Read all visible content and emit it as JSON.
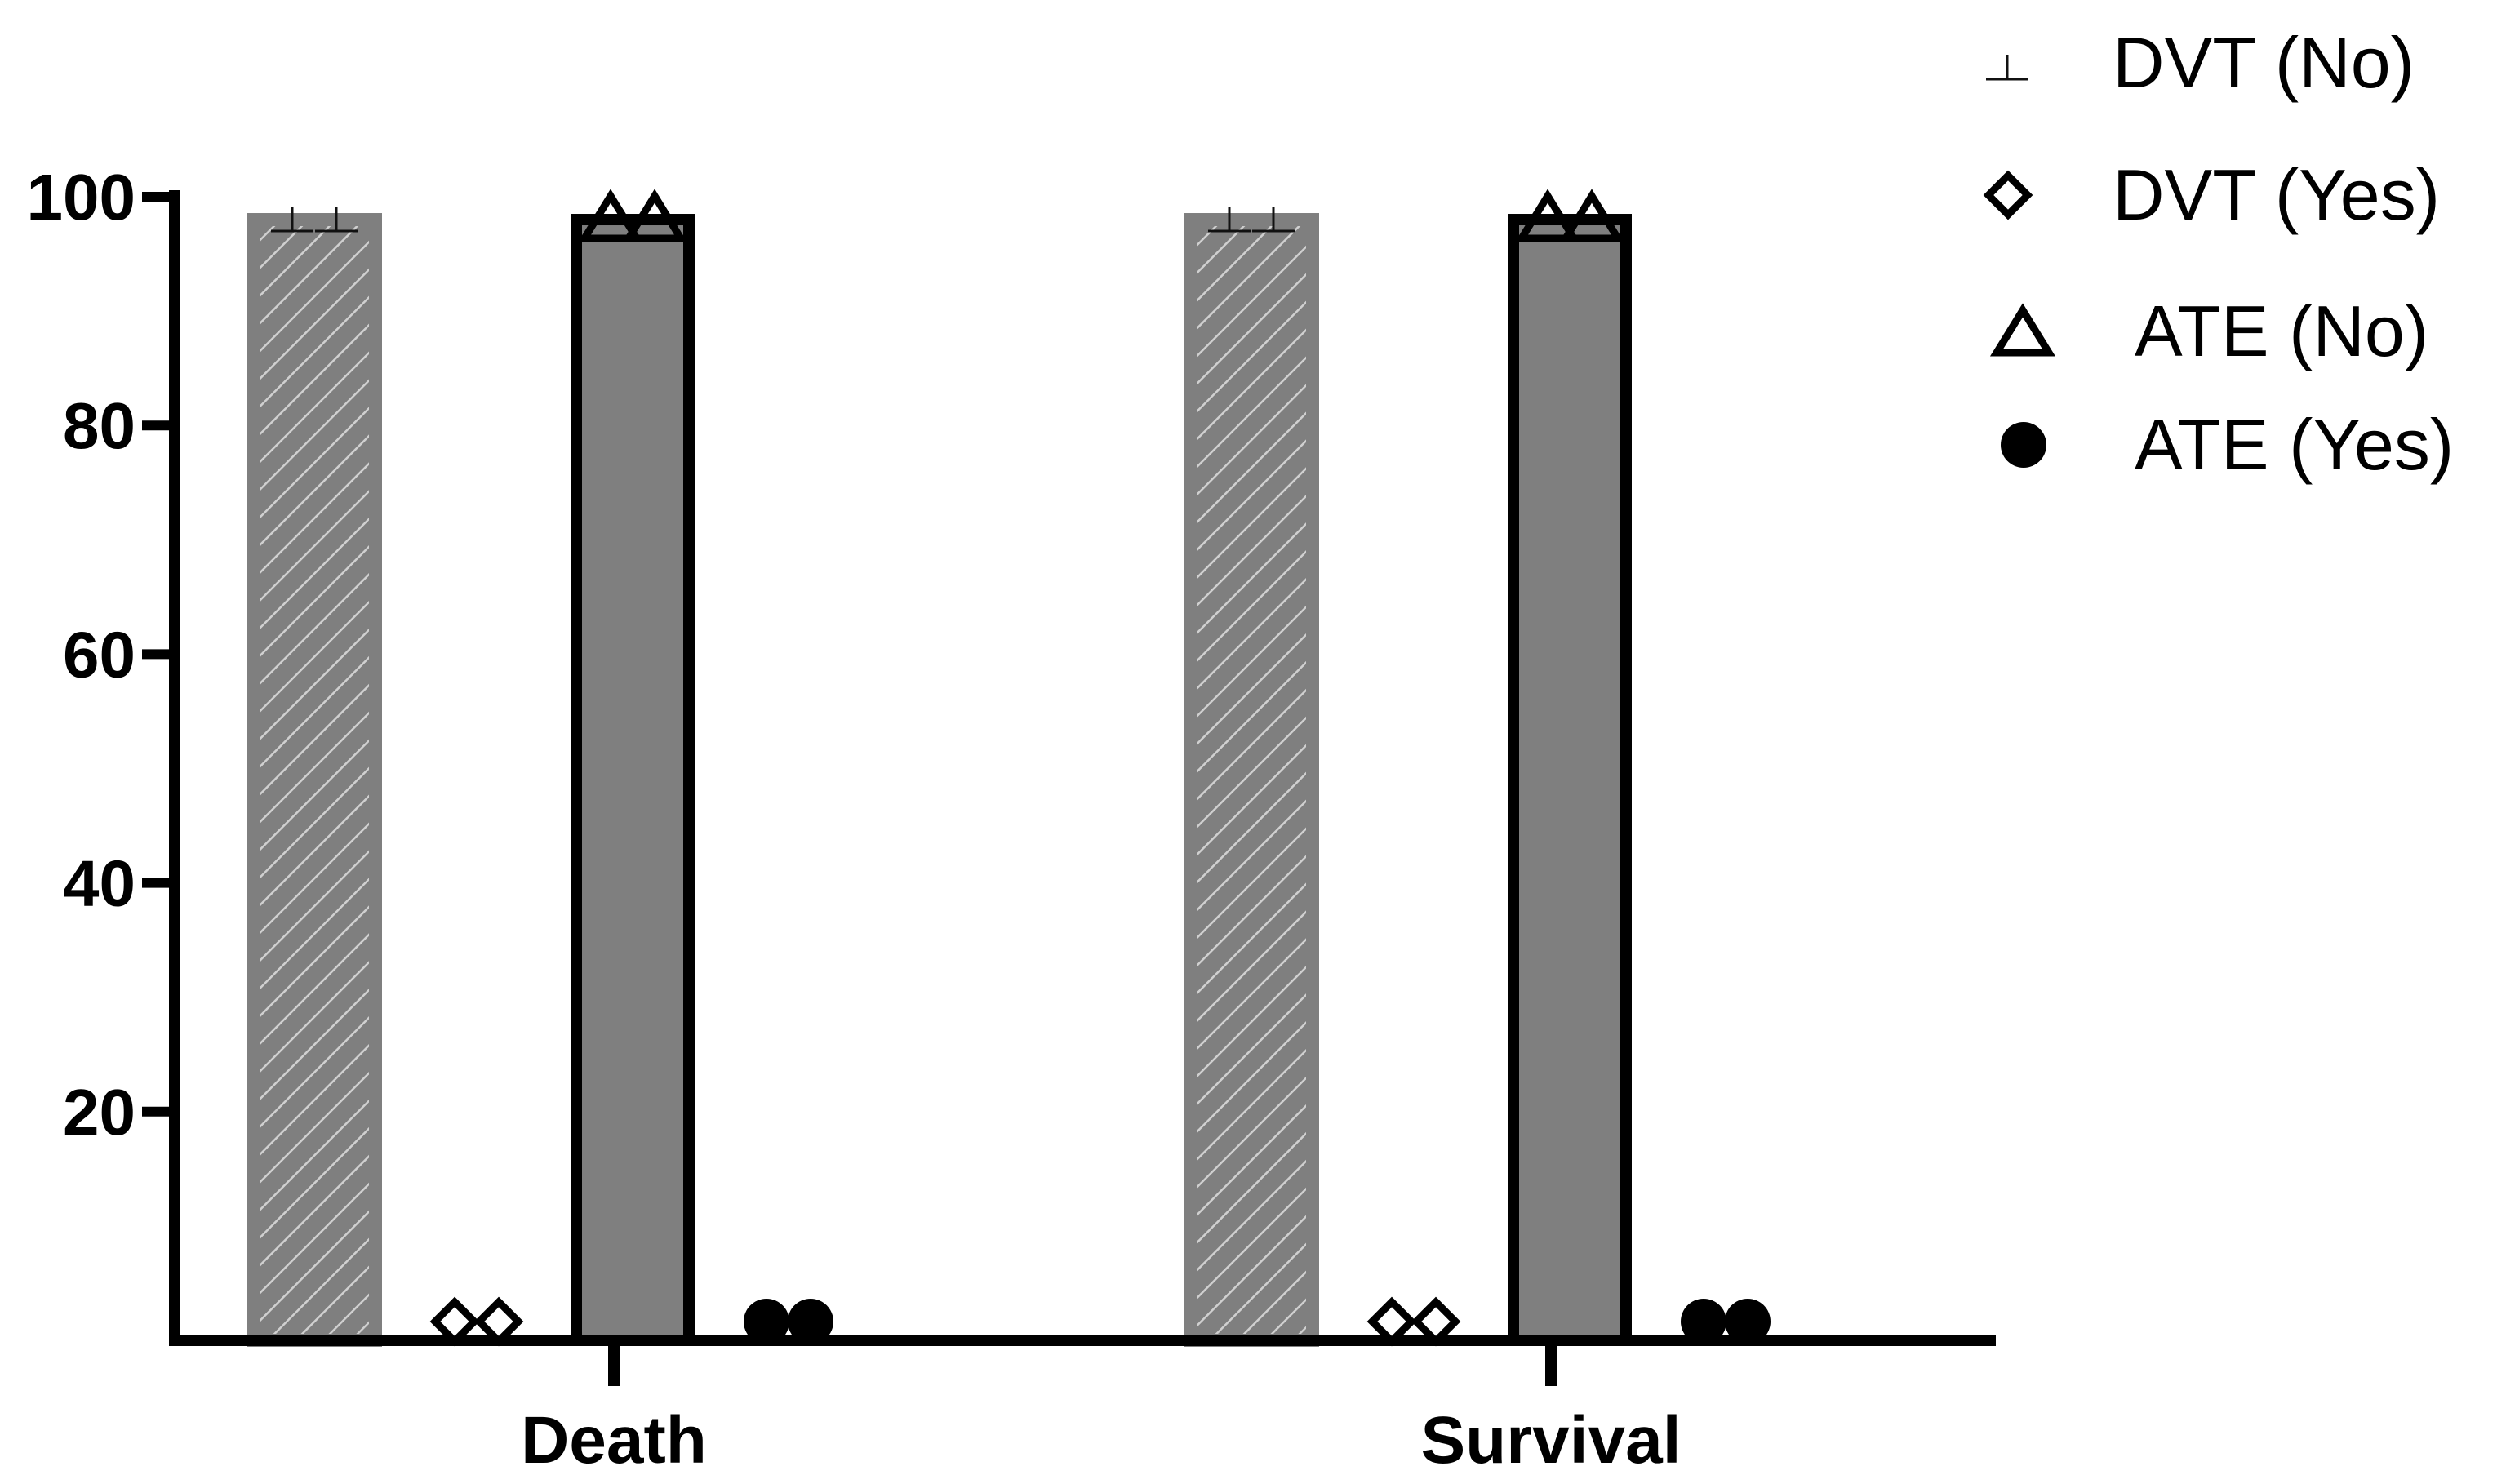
{
  "chart_data": {
    "type": "bar",
    "categories": [
      "Death",
      "Survival"
    ],
    "series": [
      {
        "name": "DVT (No)",
        "values": [
          98,
          98
        ],
        "points": [
          [
            98,
            98
          ],
          [
            98,
            98
          ]
        ],
        "marker": "perp-icon",
        "bar_style": "hatched"
      },
      {
        "name": "DVT (Yes)",
        "values": [
          2,
          2
        ],
        "points": [
          [
            2,
            2
          ],
          [
            2,
            2
          ]
        ],
        "marker": "diamond-icon",
        "bar_style": "none"
      },
      {
        "name": "ATE (No)",
        "values": [
          98,
          98
        ],
        "points": [
          [
            98,
            98
          ],
          [
            98,
            98
          ]
        ],
        "marker": "triangle-icon",
        "bar_style": "solid"
      },
      {
        "name": "ATE (Yes)",
        "values": [
          2,
          2
        ],
        "points": [
          [
            2,
            2
          ],
          [
            2,
            2
          ]
        ],
        "marker": "circle-icon",
        "bar_style": "none"
      }
    ],
    "yticks": [
      "20",
      "40",
      "60",
      "80",
      "100"
    ],
    "ylim": [
      0,
      100
    ],
    "grid": false,
    "legend": "top-right",
    "colors": {
      "bar_fill": "#7f7f7f",
      "hatch_line": "#d0d0d0",
      "axis": "#000000"
    }
  }
}
